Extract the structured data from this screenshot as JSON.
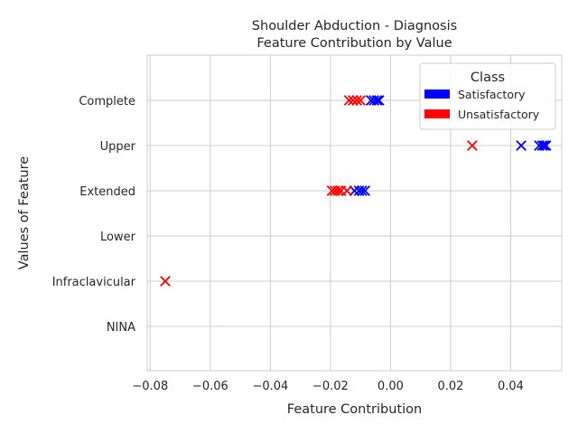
{
  "chart_data": {
    "type": "scatter",
    "title_lines": [
      "Shoulder Abduction - Diagnosis",
      "Feature Contribution by Value"
    ],
    "xlabel": "Feature Contribution",
    "ylabel": "Values of Feature",
    "xlim": [
      -0.081,
      0.057
    ],
    "xticks": [
      -0.08,
      -0.06,
      -0.04,
      -0.02,
      0.0,
      0.02,
      0.04
    ],
    "xtick_labels": [
      "−0.08",
      "−0.06",
      "−0.04",
      "−0.02",
      "0.00",
      "0.02",
      "0.04"
    ],
    "categories": [
      "Complete",
      "Upper",
      "Extended",
      "Lower",
      "Infraclavicular",
      "NINA"
    ],
    "grid": true,
    "marker": "x",
    "legend": {
      "title": "Class",
      "placement": "top-right",
      "entries": [
        {
          "label": "Satisfactory",
          "color": "#0000ff"
        },
        {
          "label": "Unsatisfactory",
          "color": "#ff0000"
        }
      ]
    },
    "series": [
      {
        "name": "Satisfactory",
        "color": "#0000ff",
        "points": [
          {
            "category": "Complete",
            "x": -0.0065
          },
          {
            "category": "Complete",
            "x": -0.0055
          },
          {
            "category": "Complete",
            "x": -0.0045
          },
          {
            "category": "Complete",
            "x": -0.0038
          },
          {
            "category": "Upper",
            "x": 0.0435
          },
          {
            "category": "Upper",
            "x": 0.0495
          },
          {
            "category": "Upper",
            "x": 0.0505
          },
          {
            "category": "Upper",
            "x": 0.0512
          },
          {
            "category": "Upper",
            "x": 0.0518
          },
          {
            "category": "Extended",
            "x": -0.012
          },
          {
            "category": "Extended",
            "x": -0.0105
          },
          {
            "category": "Extended",
            "x": -0.0095
          },
          {
            "category": "Extended",
            "x": -0.0085
          }
        ]
      },
      {
        "name": "Unsatisfactory",
        "color": "#ff0000",
        "points": [
          {
            "category": "Complete",
            "x": -0.0138
          },
          {
            "category": "Complete",
            "x": -0.0125
          },
          {
            "category": "Complete",
            "x": -0.0112
          },
          {
            "category": "Complete",
            "x": -0.01
          },
          {
            "category": "Upper",
            "x": 0.0272
          },
          {
            "category": "Extended",
            "x": -0.0195
          },
          {
            "category": "Extended",
            "x": -0.0185
          },
          {
            "category": "Extended",
            "x": -0.0175
          },
          {
            "category": "Extended",
            "x": -0.0165
          },
          {
            "category": "Extended",
            "x": -0.0145
          },
          {
            "category": "Infraclavicular",
            "x": -0.075
          }
        ]
      }
    ]
  }
}
